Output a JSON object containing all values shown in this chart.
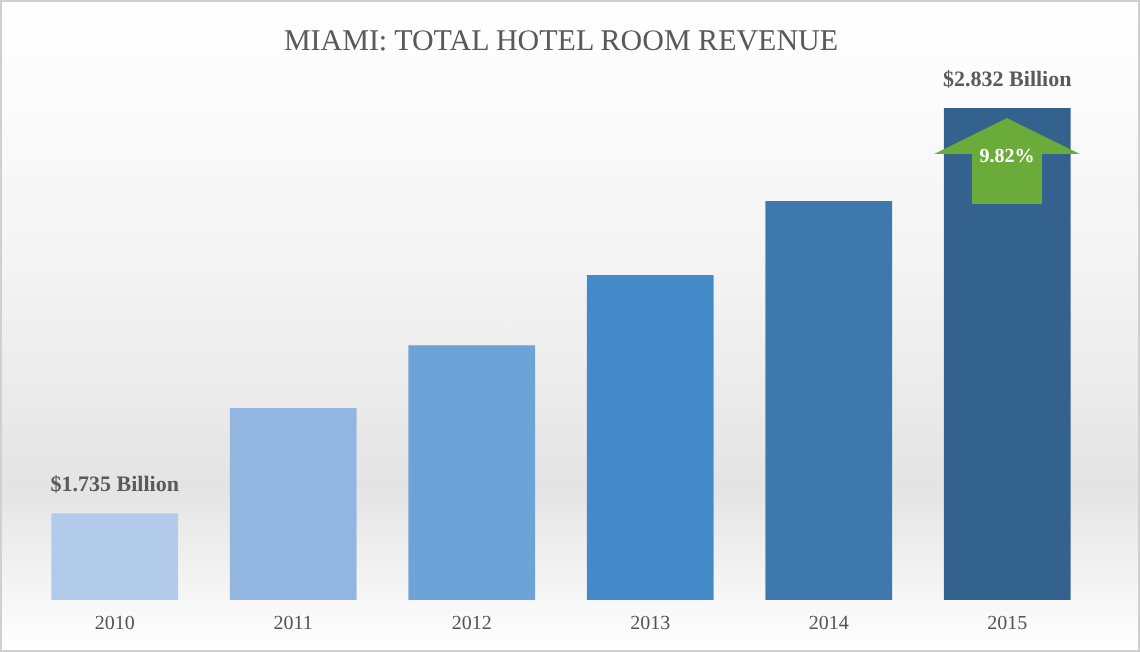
{
  "chart_data": {
    "type": "bar",
    "title": "MIAMI: TOTAL HOTEL ROOM REVENUE",
    "categories": [
      "2010",
      "2011",
      "2012",
      "2013",
      "2014",
      "2015"
    ],
    "values": [
      1.735,
      2.02,
      2.19,
      2.38,
      2.58,
      2.832
    ],
    "ylim": [
      1.5,
      2.832
    ],
    "colors": [
      "#b3cbea",
      "#93b6e0",
      "#6ea3d8",
      "#4489c8",
      "#3f78ad",
      "#34628e"
    ],
    "value_labels": [
      "$1.735 Billion",
      null,
      null,
      null,
      null,
      "$2.832 Billion"
    ],
    "annotations": [
      "9.82%"
    ]
  }
}
